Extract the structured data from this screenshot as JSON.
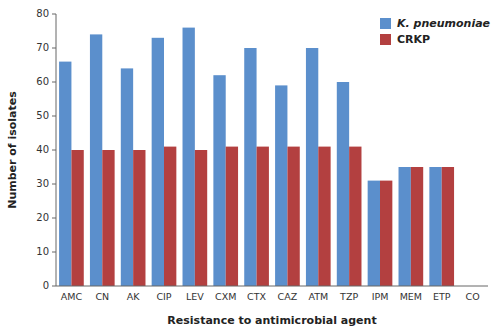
{
  "chart_data": {
    "type": "bar",
    "categories": [
      "AMC",
      "CN",
      "AK",
      "CIP",
      "LEV",
      "CXM",
      "CTX",
      "CAZ",
      "ATM",
      "TZP",
      "IPM",
      "MEM",
      "ETP",
      "CO"
    ],
    "series": [
      {
        "name": "K. pneumoniae",
        "color": "#5B8FCC",
        "values": [
          66,
          74,
          64,
          73,
          76,
          62,
          70,
          59,
          70,
          60,
          31,
          35,
          35,
          0
        ]
      },
      {
        "name": "CRKP",
        "color": "#B34040",
        "values": [
          40,
          40,
          40,
          41,
          40,
          41,
          41,
          41,
          41,
          41,
          31,
          35,
          35,
          0
        ]
      }
    ],
    "xlabel": "Resistance to antimicrobial agent",
    "ylabel": "Number of isolates",
    "ylim": [
      0,
      80
    ],
    "yticks": [
      0,
      10,
      20,
      30,
      40,
      50,
      60,
      70,
      80
    ],
    "grid": false,
    "legend": "upper right"
  }
}
